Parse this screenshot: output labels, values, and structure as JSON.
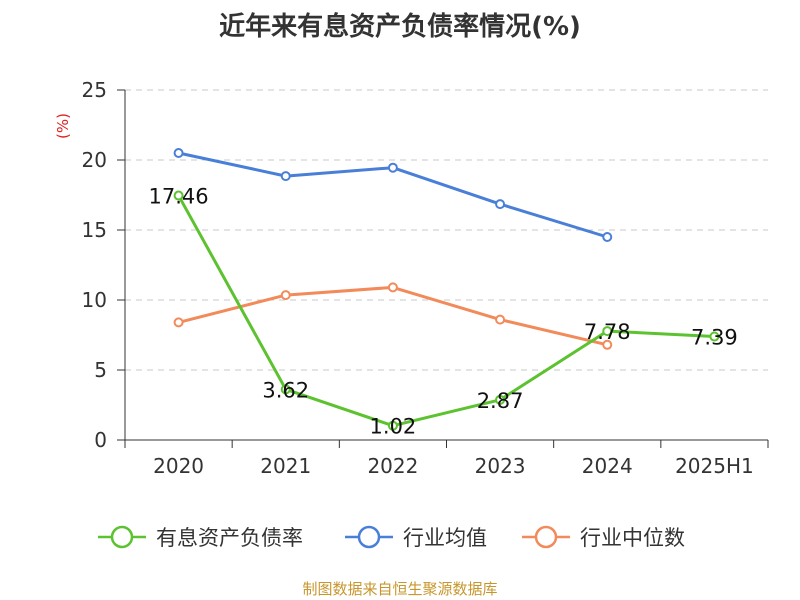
{
  "title": "近年来有息资产负债率情况(%)",
  "source": "制图数据来自恒生聚源数据库",
  "chart_data": {
    "type": "line",
    "title": "近年来有息资产负债率情况(%)",
    "ylabel": "(%)",
    "xlabel": "",
    "categories": [
      "2020",
      "2021",
      "2022",
      "2023",
      "2024",
      "2025H1"
    ],
    "ylim": [
      0,
      25
    ],
    "yticks": [
      0,
      5,
      10,
      15,
      20,
      25
    ],
    "grid": true,
    "legend_position": "bottom",
    "series": [
      {
        "name": "有息资产负债率",
        "color": "#5cc22f",
        "values": [
          17.46,
          3.62,
          1.02,
          2.87,
          7.78,
          7.39
        ],
        "labels": [
          "17.46",
          "3.62",
          "1.02",
          "2.87",
          "7.78",
          "7.39"
        ]
      },
      {
        "name": "行业均值",
        "color": "#4a7fd8",
        "values": [
          20.5,
          18.85,
          19.45,
          16.85,
          14.5,
          null
        ]
      },
      {
        "name": "行业中位数",
        "color": "#f28a5a",
        "values": [
          8.4,
          10.35,
          10.9,
          8.6,
          6.8,
          null
        ]
      }
    ]
  }
}
